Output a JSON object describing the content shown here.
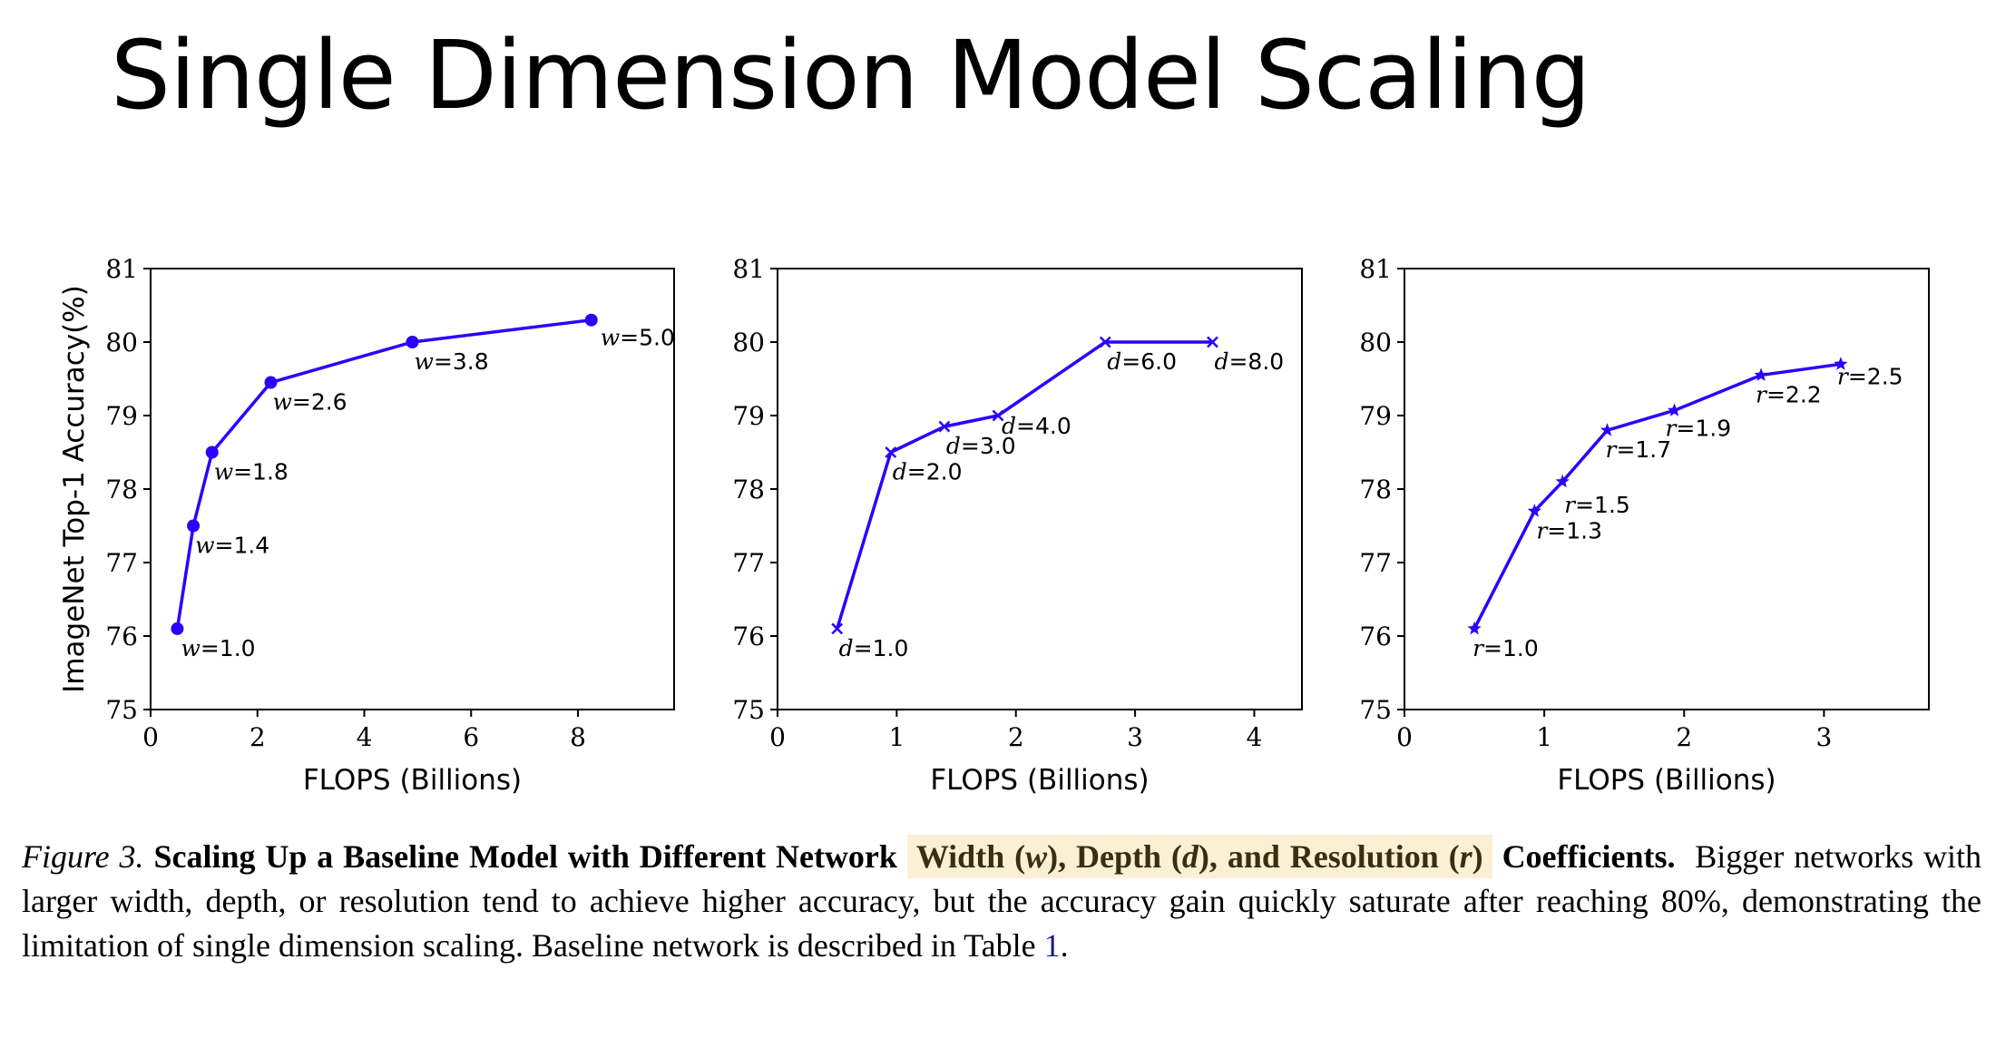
{
  "slide": {
    "title": "Single Dimension Model Scaling"
  },
  "colors": {
    "series": "#2a00ff",
    "highlight": "#fbf0d2",
    "axis": "#000000"
  },
  "chart_data": [
    {
      "type": "line",
      "marker": "dot",
      "ylabel": "ImageNet Top-1 Accuracy(%)",
      "xlabel": "FLOPS (Billions)",
      "xlim": [
        0,
        9.8
      ],
      "ylim": [
        75,
        81
      ],
      "xticks": [
        0,
        2,
        4,
        6,
        8
      ],
      "yticks": [
        75,
        76,
        77,
        78,
        79,
        80,
        81
      ],
      "points": [
        {
          "x": 0.5,
          "y": 76.1,
          "var": "w",
          "value": "=1.0"
        },
        {
          "x": 0.8,
          "y": 77.5,
          "var": "w",
          "value": "=1.4"
        },
        {
          "x": 1.15,
          "y": 78.5,
          "var": "w",
          "value": "=1.8"
        },
        {
          "x": 2.25,
          "y": 79.45,
          "var": "w",
          "value": "=2.6"
        },
        {
          "x": 4.9,
          "y": 80.0,
          "var": "w",
          "value": "=3.8"
        },
        {
          "x": 8.25,
          "y": 80.3,
          "var": "w",
          "value": "=5.0"
        }
      ]
    },
    {
      "type": "line",
      "marker": "x",
      "ylabel": "",
      "xlabel": "FLOPS (Billions)",
      "xlim": [
        0,
        4.4
      ],
      "ylim": [
        75,
        81
      ],
      "xticks": [
        0,
        1,
        2,
        3,
        4
      ],
      "yticks": [
        75,
        76,
        77,
        78,
        79,
        80,
        81
      ],
      "points": [
        {
          "x": 0.5,
          "y": 76.1,
          "var": "d",
          "value": "=1.0"
        },
        {
          "x": 0.95,
          "y": 78.5,
          "var": "d",
          "value": "=2.0"
        },
        {
          "x": 1.4,
          "y": 78.85,
          "var": "d",
          "value": "=3.0"
        },
        {
          "x": 1.85,
          "y": 79.0,
          "var": "d",
          "value": "=4.0"
        },
        {
          "x": 2.75,
          "y": 80.0,
          "var": "d",
          "value": "=6.0"
        },
        {
          "x": 3.65,
          "y": 80.0,
          "var": "d",
          "value": "=8.0"
        }
      ]
    },
    {
      "type": "line",
      "marker": "star",
      "ylabel": "",
      "xlabel": "FLOPS (Billions)",
      "xlim": [
        0,
        3.75
      ],
      "ylim": [
        75,
        81
      ],
      "xticks": [
        0,
        1,
        2,
        3
      ],
      "yticks": [
        75,
        76,
        77,
        78,
        79,
        80,
        81
      ],
      "points": [
        {
          "x": 0.5,
          "y": 76.1,
          "var": "r",
          "value": "=1.0"
        },
        {
          "x": 0.93,
          "y": 77.7,
          "var": "r",
          "value": "=1.3"
        },
        {
          "x": 1.13,
          "y": 78.1,
          "var": "r",
          "value": "=1.5"
        },
        {
          "x": 1.45,
          "y": 78.8,
          "var": "r",
          "value": "=1.7"
        },
        {
          "x": 1.93,
          "y": 79.07,
          "var": "r",
          "value": "=1.9"
        },
        {
          "x": 2.55,
          "y": 79.55,
          "var": "r",
          "value": "=2.2"
        },
        {
          "x": 3.12,
          "y": 79.7,
          "var": "r",
          "value": "=2.5"
        }
      ]
    }
  ],
  "caption": {
    "figure_label": "Figure 3.",
    "bold_lead": "Scaling Up a Baseline Model with Different Network",
    "hl_width": "Width",
    "hl_width_var": "w",
    "hl_depth": "Depth",
    "hl_depth_var": "d",
    "hl_and_resolution": "and Resolution",
    "hl_res_var": "r",
    "bold_tail": "Coefficients.",
    "body": "Bigger networks with larger width, depth, or resolution tend to achieve higher accuracy, but the accuracy gain quickly saturate after reaching 80%, demonstrating the limitation of single dimension scaling. Baseline network is described in Table",
    "table_ref": "1",
    "end": "."
  }
}
